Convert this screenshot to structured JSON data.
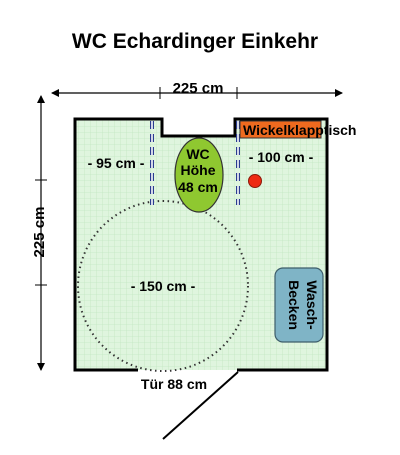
{
  "title": "WC Echardinger Einkehr",
  "labels": {
    "width_top": "225 cm",
    "height_left": "225 cm",
    "left_clearance": "- 95 cm -",
    "right_clearance": "- 100 cm -",
    "wc_line1": "WC",
    "wc_line2": "Höhe",
    "wc_line3": "48 cm",
    "changing_table": "Wickelklapptisch",
    "turning_circle": "- 150 cm -",
    "sink_line1": "Wasch-",
    "sink_line2": "Becken",
    "door": "Tür 88 cm"
  },
  "colors": {
    "floor": "#dff5de",
    "grid": "#bfe3bf",
    "wall": "#000000",
    "wc": "#8fc830",
    "changing_table": "#ee6a1f",
    "sink": "#7fb4c6",
    "emergency_button": "#ee2a12",
    "grab_bar": "#2a3c8f"
  }
}
